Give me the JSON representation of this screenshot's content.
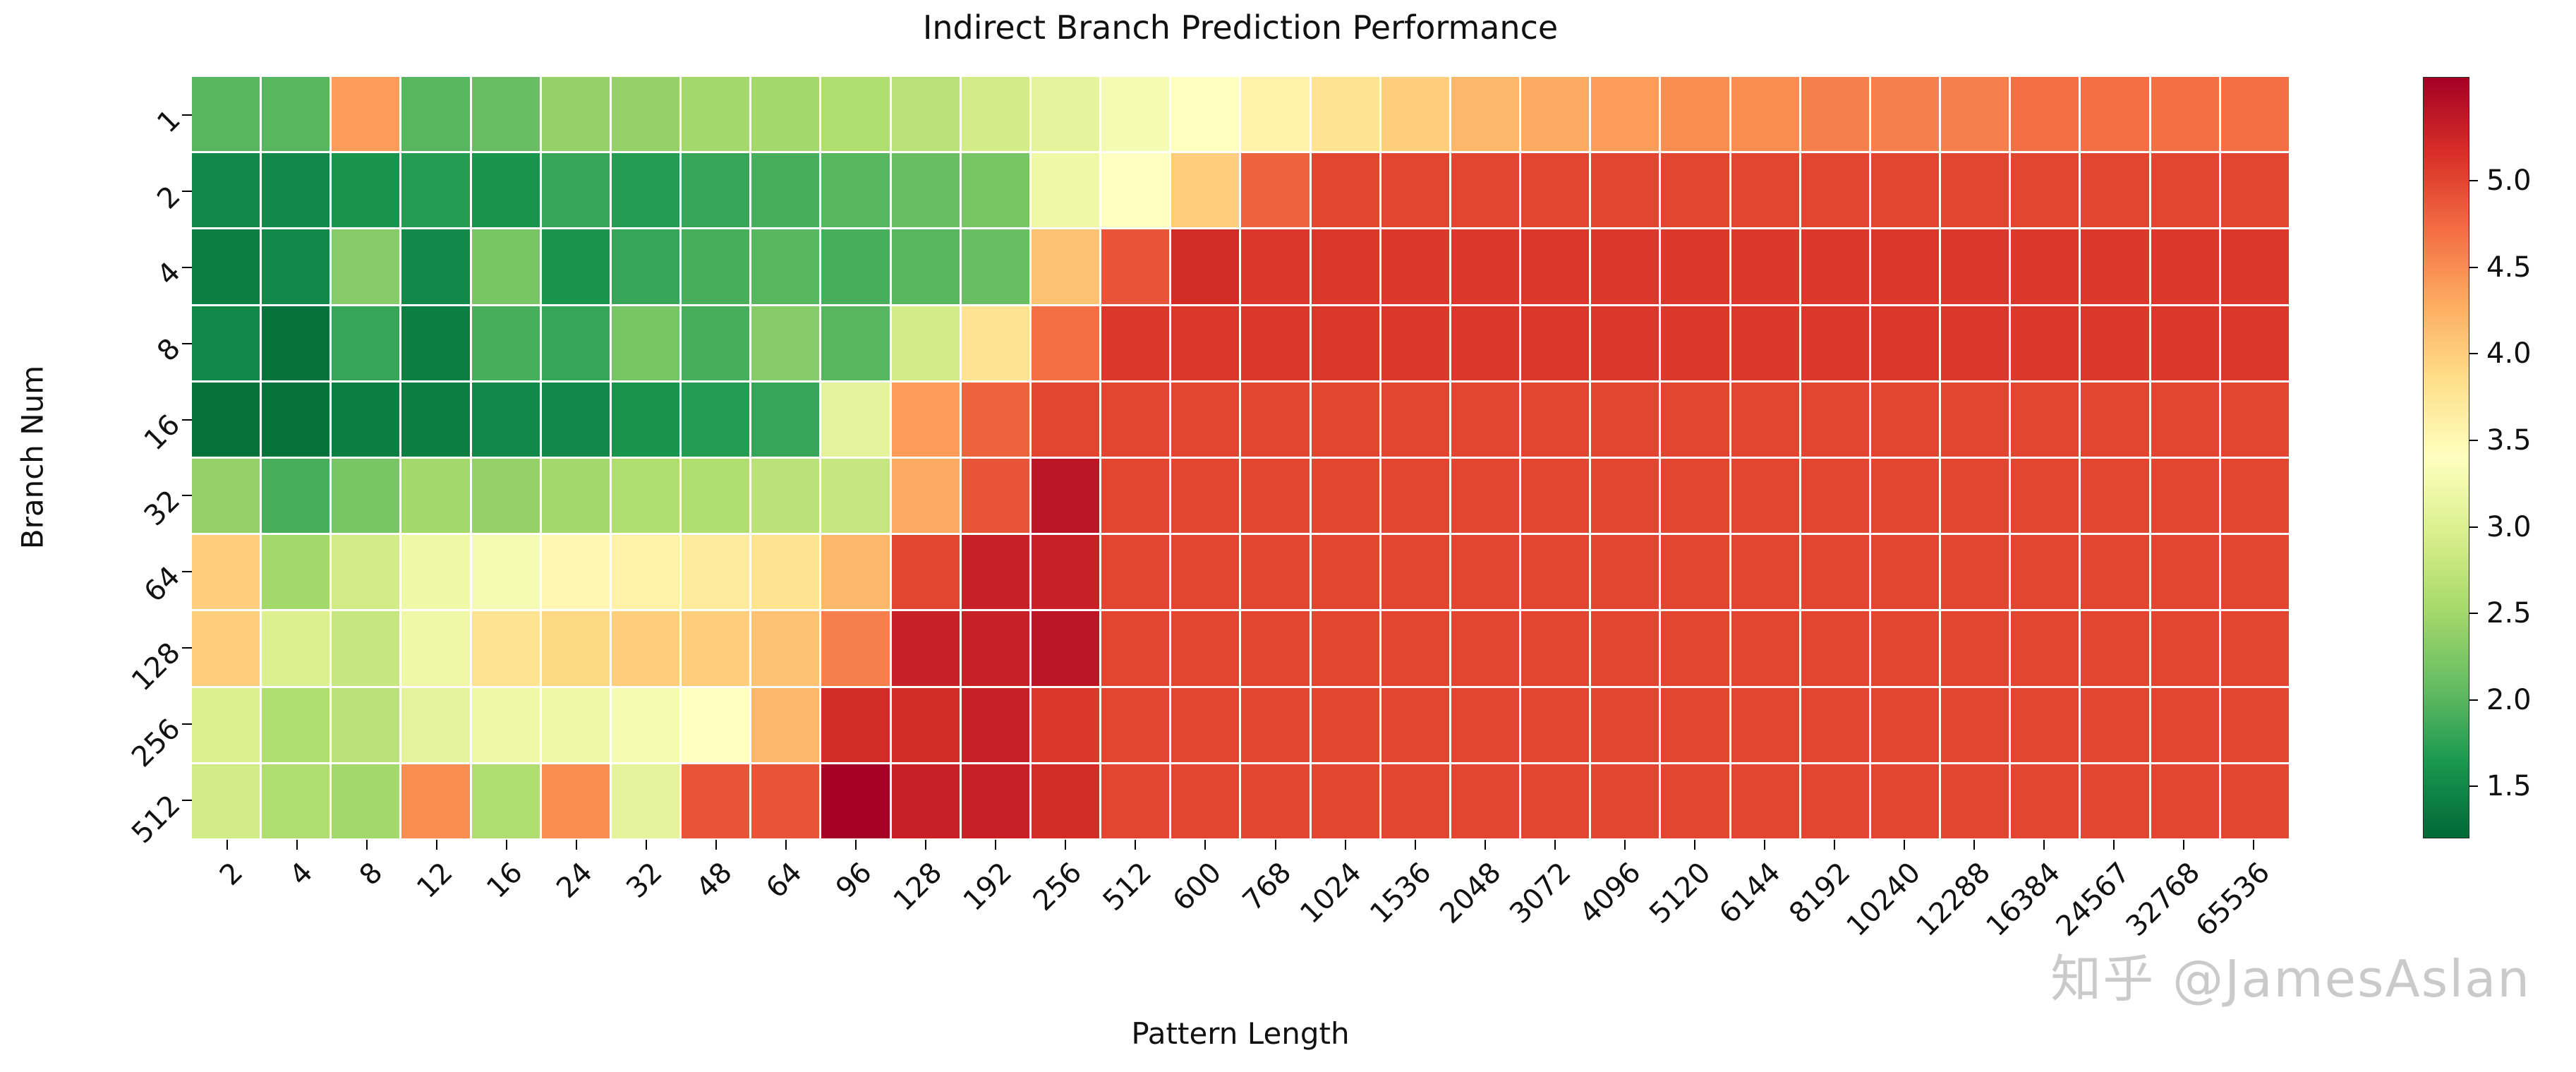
{
  "title": "Indirect Branch Prediction Performance",
  "watermark": "知乎 @JamesAslan",
  "chart_data": {
    "type": "heatmap",
    "title": "Indirect Branch Prediction Performance",
    "xlabel": "Pattern Length",
    "ylabel": "Branch Num",
    "x_categories": [
      "2",
      "4",
      "8",
      "12",
      "16",
      "24",
      "32",
      "48",
      "64",
      "96",
      "128",
      "192",
      "256",
      "512",
      "600",
      "768",
      "1024",
      "1536",
      "2048",
      "3072",
      "4096",
      "5120",
      "6144",
      "8192",
      "10240",
      "12288",
      "16384",
      "24567",
      "32768",
      "65536"
    ],
    "y_categories": [
      "1",
      "2",
      "4",
      "8",
      "16",
      "32",
      "64",
      "128",
      "256",
      "512"
    ],
    "vmin": 1.2,
    "vmax": 5.6,
    "colormap": "RdYlGn_r",
    "colormap_stops": [
      "#006837",
      "#1a9850",
      "#66bd63",
      "#a6d96a",
      "#d9ef8b",
      "#ffffbf",
      "#fee08b",
      "#fdae61",
      "#f46d43",
      "#d73027",
      "#a50026"
    ],
    "grid_line_color": "#ffffff",
    "colorbar_ticks": [
      1.5,
      2.0,
      2.5,
      3.0,
      3.5,
      4.0,
      4.5,
      5.0
    ],
    "values": [
      [
        2.0,
        2.0,
        4.4,
        2.0,
        2.1,
        2.4,
        2.4,
        2.5,
        2.5,
        2.6,
        2.7,
        2.9,
        3.1,
        3.3,
        3.4,
        3.6,
        3.8,
        4.0,
        4.2,
        4.3,
        4.4,
        4.5,
        4.5,
        4.6,
        4.6,
        4.6,
        4.7,
        4.7,
        4.7,
        4.7
      ],
      [
        1.5,
        1.5,
        1.6,
        1.7,
        1.6,
        1.8,
        1.7,
        1.8,
        1.9,
        2.0,
        2.1,
        2.2,
        3.2,
        3.4,
        4.0,
        4.8,
        5.0,
        5.0,
        5.0,
        5.0,
        5.0,
        5.0,
        5.0,
        5.0,
        5.0,
        5.0,
        5.0,
        5.0,
        5.0,
        5.0
      ],
      [
        1.4,
        1.5,
        2.3,
        1.5,
        2.2,
        1.6,
        1.8,
        1.9,
        2.0,
        1.9,
        2.0,
        2.1,
        4.1,
        4.9,
        5.2,
        5.1,
        5.1,
        5.1,
        5.1,
        5.1,
        5.1,
        5.1,
        5.1,
        5.1,
        5.1,
        5.1,
        5.1,
        5.1,
        5.1,
        5.1
      ],
      [
        1.5,
        1.3,
        1.8,
        1.4,
        1.9,
        1.8,
        2.2,
        1.9,
        2.3,
        2.0,
        2.9,
        3.8,
        4.7,
        5.1,
        5.1,
        5.1,
        5.1,
        5.1,
        5.1,
        5.1,
        5.1,
        5.1,
        5.1,
        5.1,
        5.1,
        5.1,
        5.1,
        5.1,
        5.1,
        5.1
      ],
      [
        1.3,
        1.3,
        1.4,
        1.4,
        1.5,
        1.5,
        1.6,
        1.7,
        1.8,
        3.1,
        4.4,
        4.8,
        5.0,
        5.0,
        5.0,
        5.0,
        5.0,
        5.0,
        5.0,
        5.0,
        5.0,
        5.0,
        5.0,
        5.0,
        5.0,
        5.0,
        5.0,
        5.0,
        5.0,
        5.0
      ],
      [
        2.4,
        1.9,
        2.2,
        2.5,
        2.4,
        2.5,
        2.6,
        2.6,
        2.7,
        2.8,
        4.3,
        4.9,
        5.4,
        5.0,
        5.0,
        5.0,
        5.0,
        5.0,
        5.0,
        5.0,
        5.0,
        5.0,
        5.0,
        5.0,
        5.0,
        5.0,
        5.0,
        5.0,
        5.0,
        5.0
      ],
      [
        4.0,
        2.5,
        2.9,
        3.2,
        3.3,
        3.5,
        3.6,
        3.7,
        3.8,
        4.2,
        5.0,
        5.3,
        5.3,
        5.0,
        5.0,
        5.0,
        5.0,
        5.0,
        5.0,
        5.0,
        5.0,
        5.0,
        5.0,
        5.0,
        5.0,
        5.0,
        5.0,
        5.0,
        5.0,
        5.0
      ],
      [
        4.0,
        3.0,
        2.8,
        3.2,
        3.8,
        3.9,
        4.0,
        4.0,
        4.1,
        4.6,
        5.3,
        5.3,
        5.4,
        5.0,
        5.0,
        5.0,
        5.0,
        5.0,
        5.0,
        5.0,
        5.0,
        5.0,
        5.0,
        5.0,
        5.0,
        5.0,
        5.0,
        5.0,
        5.0,
        5.0
      ],
      [
        3.0,
        2.6,
        2.7,
        3.1,
        3.2,
        3.2,
        3.3,
        3.4,
        4.2,
        5.2,
        5.2,
        5.3,
        5.1,
        5.0,
        5.0,
        5.0,
        5.0,
        5.0,
        5.0,
        5.0,
        5.0,
        5.0,
        5.0,
        5.0,
        5.0,
        5.0,
        5.0,
        5.0,
        5.0,
        5.0
      ],
      [
        2.9,
        2.6,
        2.5,
        4.5,
        2.6,
        4.5,
        3.1,
        4.9,
        4.9,
        5.6,
        5.3,
        5.3,
        5.2,
        5.0,
        5.0,
        5.0,
        5.0,
        5.0,
        5.0,
        5.0,
        5.0,
        5.0,
        5.0,
        5.0,
        5.0,
        5.0,
        5.0,
        5.0,
        5.0,
        5.0
      ]
    ]
  }
}
